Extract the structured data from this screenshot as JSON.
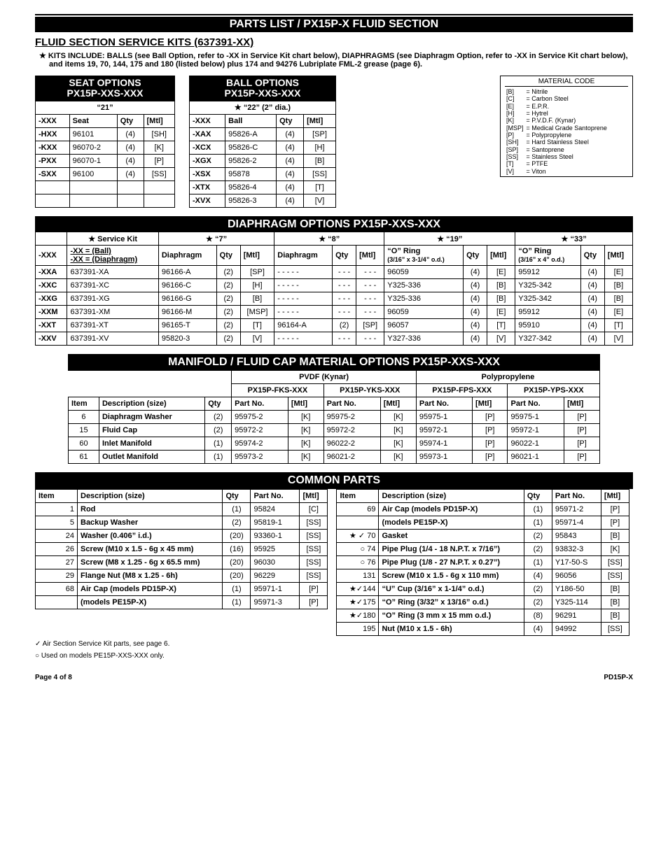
{
  "page_header": "PARTS LIST / PX15P-X FLUID SECTION",
  "section_title": "FLUID SECTION SERVICE KITS (637391-XX)",
  "kit_note": "KITS INCLUDE: BALLS (see Ball Option, refer to -XX in Service Kit chart below), DIAPHRAGMS (see Diaphragm Option, refer to -XX in Service Kit chart below), and items 19, 70, 144, 175 and 180 (listed below) plus 174 and 94276 Lubriplate FML-2 grease (page 6).",
  "seat": {
    "title1": "SEAT OPTIONS",
    "title2": "PX15P-XXS-XXX",
    "sub": "“21”",
    "cols": [
      "-XXX",
      "Seat",
      "Qty",
      "[Mtl]"
    ],
    "rows": [
      [
        "-HXX",
        "96101",
        "(4)",
        "[SH]"
      ],
      [
        "-KXX",
        "96070-2",
        "(4)",
        "[K]"
      ],
      [
        "-PXX",
        "96070-1",
        "(4)",
        "[P]"
      ],
      [
        "-SXX",
        "96100",
        "(4)",
        "[SS]"
      ],
      [
        "",
        "",
        "",
        ""
      ],
      [
        "",
        "",
        "",
        ""
      ]
    ]
  },
  "ball": {
    "title1": "BALL OPTIONS",
    "title2": "PX15P-XXS-XXX",
    "sub": "★ “22” (2” dia.)",
    "cols": [
      "-XXX",
      "Ball",
      "Qty",
      "[Mtl]"
    ],
    "rows": [
      [
        "-XAX",
        "95826-A",
        "(4)",
        "[SP]"
      ],
      [
        "-XCX",
        "95826-C",
        "(4)",
        "[H]"
      ],
      [
        "-XGX",
        "95826-2",
        "(4)",
        "[B]"
      ],
      [
        "-XSX",
        "95878",
        "(4)",
        "[SS]"
      ],
      [
        "-XTX",
        "95826-4",
        "(4)",
        "[T]"
      ],
      [
        "-XVX",
        "95826-3",
        "(4)",
        "[V]"
      ]
    ]
  },
  "matcode": {
    "title": "MATERIAL CODE",
    "rows": [
      [
        "[B]",
        "= Nitrile"
      ],
      [
        "[C]",
        "= Carbon Steel"
      ],
      [
        "[E]",
        "= E.P.R."
      ],
      [
        "[H]",
        "= Hytrel"
      ],
      [
        "[K]",
        "= P.V.D.F. (Kynar)"
      ],
      [
        "[MSP]",
        "= Medical Grade Santoprene"
      ],
      [
        "[P]",
        "= Polypropylene"
      ],
      [
        "[SH]",
        "= Hard Stainless Steel"
      ],
      [
        "[SP]",
        "= Santoprene"
      ],
      [
        "[SS]",
        "= Stainless Steel"
      ],
      [
        "[T]",
        "= PTFE"
      ],
      [
        "[V]",
        "= Viton"
      ]
    ]
  },
  "diaphragm": {
    "title": "DIAPHRAGM OPTIONS PX15P-XXS-XXX",
    "svc": "★ Service Kit",
    "h7": "★ “7”",
    "h8": "★ “8”",
    "h19": "★ “19”",
    "h33": "★ “33”",
    "sk1": "-XX = (Ball)",
    "sk2": "-XX = (Diaphragm)",
    "o19": "“O” Ring",
    "o19b": "(3/16” x 3-1/4” o.d.)",
    "o33": "“O” Ring",
    "o33b": "(3/16” x 4” o.d.)",
    "cols": [
      "-XXX",
      "",
      "Diaphragm",
      "Qty",
      "[Mtl]",
      "Diaphragm",
      "Qty",
      "[Mtl]",
      "",
      "Qty",
      "[Mtl]",
      "",
      "Qty",
      "[Mtl]"
    ],
    "rows": [
      [
        "-XXA",
        "637391-XA",
        "96166-A",
        "(2)",
        "[SP]",
        "- - - - -",
        "- - -",
        "- - -",
        "96059",
        "(4)",
        "[E]",
        "95912",
        "(4)",
        "[E]"
      ],
      [
        "-XXC",
        "637391-XC",
        "96166-C",
        "(2)",
        "[H]",
        "- - - - -",
        "- - -",
        "- - -",
        "Y325-336",
        "(4)",
        "[B]",
        "Y325-342",
        "(4)",
        "[B]"
      ],
      [
        "-XXG",
        "637391-XG",
        "96166-G",
        "(2)",
        "[B]",
        "- - - - -",
        "- - -",
        "- - -",
        "Y325-336",
        "(4)",
        "[B]",
        "Y325-342",
        "(4)",
        "[B]"
      ],
      [
        "-XXM",
        "637391-XM",
        "96166-M",
        "(2)",
        "[MSP]",
        "- - - - -",
        "- - -",
        "- - -",
        "96059",
        "(4)",
        "[E]",
        "95912",
        "(4)",
        "[E]"
      ],
      [
        "-XXT",
        "637391-XT",
        "96165-T",
        "(2)",
        "[T]",
        "96164-A",
        "(2)",
        "[SP]",
        "96057",
        "(4)",
        "[T]",
        "95910",
        "(4)",
        "[T]"
      ],
      [
        "-XXV",
        "637391-XV",
        "95820-3",
        "(2)",
        "[V]",
        "- - - - -",
        "- - -",
        "- - -",
        "Y327-336",
        "(4)",
        "[V]",
        "Y327-342",
        "(4)",
        "[V]"
      ]
    ]
  },
  "manifold": {
    "title": "MANIFOLD / FLUID CAP MATERIAL OPTIONS PX15P-XXS-XXX",
    "g1": "PVDF (Kynar)",
    "g2": "Polypropylene",
    "m1": "PX15P-FKS-XXX",
    "m2": "PX15P-YKS-XXX",
    "m3": "PX15P-FPS-XXX",
    "m4": "PX15P-YPS-XXX",
    "cols": [
      "Item",
      "Description (size)",
      "Qty",
      "Part No.",
      "[Mtl]",
      "Part No.",
      "[Mtl]",
      "Part No.",
      "[Mtl]",
      "Part No.",
      "[Mtl]"
    ],
    "rows": [
      [
        "6",
        "Diaphragm Washer",
        "(2)",
        "95975-2",
        "[K]",
        "95975-2",
        "[K]",
        "95975-1",
        "[P]",
        "95975-1",
        "[P]"
      ],
      [
        "15",
        "Fluid Cap",
        "(2)",
        "95972-2",
        "[K]",
        "95972-2",
        "[K]",
        "95972-1",
        "[P]",
        "95972-1",
        "[P]"
      ],
      [
        "60",
        "Inlet Manifold",
        "(1)",
        "95974-2",
        "[K]",
        "96022-2",
        "[K]",
        "95974-1",
        "[P]",
        "96022-1",
        "[P]"
      ],
      [
        "61",
        "Outlet Manifold",
        "(1)",
        "95973-2",
        "[K]",
        "96021-2",
        "[K]",
        "95973-1",
        "[P]",
        "96021-1",
        "[P]"
      ]
    ]
  },
  "common": {
    "title": "COMMON PARTS",
    "cols": [
      "Item",
      "Description (size)",
      "Qty",
      "Part No.",
      "[Mtl]"
    ],
    "left": [
      [
        "1",
        "Rod",
        "(1)",
        "95824",
        "[C]"
      ],
      [
        "5",
        "Backup Washer",
        "(2)",
        "95819-1",
        "[SS]"
      ],
      [
        "24",
        "Washer (0.406” i.d.)",
        "(20)",
        "93360-1",
        "[SS]"
      ],
      [
        "26",
        "Screw (M10 x 1.5 - 6g x 45 mm)",
        "(16)",
        "95925",
        "[SS]"
      ],
      [
        "27",
        "Screw (M8 x 1.25 - 6g x 65.5 mm)",
        "(20)",
        "96030",
        "[SS]"
      ],
      [
        "29",
        "Flange Nut (M8 x 1.25 - 6h)",
        "(20)",
        "96229",
        "[SS]"
      ],
      [
        "68",
        "Air Cap  (models PD15P-X)",
        "(1)",
        "95971-1",
        "[P]"
      ],
      [
        "",
        "          (models PE15P-X)",
        "(1)",
        "95971-3",
        "[P]"
      ]
    ],
    "right": [
      [
        "69",
        "Air Cap  (models PD15P-X)",
        "(1)",
        "95971-2",
        "[P]"
      ],
      [
        "",
        "          (models PE15P-X)",
        "(1)",
        "95971-4",
        "[P]"
      ],
      [
        "★ ✓ 70",
        "Gasket",
        "(2)",
        "95843",
        "[B]"
      ],
      [
        "○ 74",
        "Pipe Plug (1/4 - 18 N.P.T. x 7/16”)",
        "(2)",
        "93832-3",
        "[K]"
      ],
      [
        "○ 76",
        "Pipe Plug (1/8 - 27 N.P.T. x 0.27”)",
        "(1)",
        "Y17-50-S",
        "[SS]"
      ],
      [
        "131",
        "Screw (M10 x 1.5 - 6g x 110 mm)",
        "(4)",
        "96056",
        "[SS]"
      ],
      [
        "★✓144",
        "“U” Cup (3/16” x 1-1/4” o.d.)",
        "(2)",
        "Y186-50",
        "[B]"
      ],
      [
        "★✓175",
        "“O” Ring (3/32” x 13/16” o.d.)",
        "(2)",
        "Y325-114",
        "[B]"
      ],
      [
        "★✓180",
        "“O” Ring (3 mm x 15 mm o.d.)",
        "(8)",
        "96291",
        "[B]"
      ],
      [
        "195",
        "Nut (M10 x 1.5 - 6h)",
        "(4)",
        "94992",
        "[SS]"
      ]
    ]
  },
  "legend1": "✓  Air Section Service Kit parts, see page 6.",
  "legend2": "○  Used on models PE15P-XXS-XXX only.",
  "footer_left": "Page  4 of 8",
  "footer_right": "PD15P-X"
}
